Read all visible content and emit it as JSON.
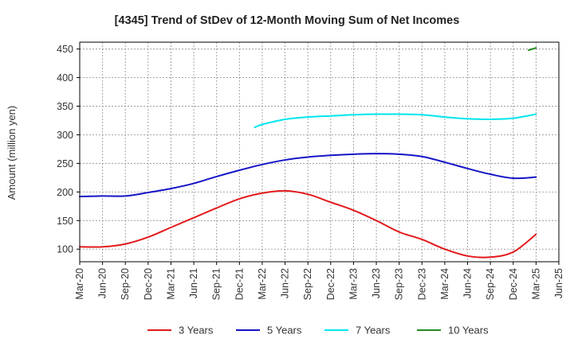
{
  "chart_data": {
    "type": "line",
    "title": "[4345]  Trend of StDev of 12-Month Moving Sum of Net Incomes",
    "ylabel": "Amount (million yen)",
    "xlabel": "",
    "ylim": [
      78,
      462
    ],
    "yticks": [
      100,
      150,
      200,
      250,
      300,
      350,
      400,
      450
    ],
    "x_tick_labels": [
      "Mar-20",
      "Jun-20",
      "Sep-20",
      "Dec-20",
      "Mar-21",
      "Jun-21",
      "Sep-21",
      "Dec-21",
      "Mar-22",
      "Jun-22",
      "Sep-22",
      "Dec-22",
      "Mar-23",
      "Jun-23",
      "Sep-23",
      "Dec-23",
      "Mar-24",
      "Jun-24",
      "Sep-24",
      "Dec-24",
      "Mar-25",
      "Jun-25"
    ],
    "grid": true,
    "legend_position": "bottom",
    "series": [
      {
        "name": "3 Years",
        "color": "#e31a1c",
        "points": [
          [
            0,
            104
          ],
          [
            1,
            104
          ],
          [
            2,
            109
          ],
          [
            3,
            121
          ],
          [
            4,
            138
          ],
          [
            5,
            155
          ],
          [
            6,
            172
          ],
          [
            7,
            188
          ],
          [
            8,
            198
          ],
          [
            9,
            202
          ],
          [
            10,
            196
          ],
          [
            11,
            182
          ],
          [
            12,
            168
          ],
          [
            13,
            150
          ],
          [
            14,
            130
          ],
          [
            15,
            117
          ],
          [
            16,
            100
          ],
          [
            17,
            88
          ],
          [
            18,
            86
          ],
          [
            19,
            95
          ],
          [
            20,
            126
          ]
        ]
      },
      {
        "name": "5 Years",
        "color": "#1414c8",
        "points": [
          [
            0,
            192
          ],
          [
            1,
            193
          ],
          [
            2,
            193
          ],
          [
            3,
            199
          ],
          [
            4,
            206
          ],
          [
            5,
            215
          ],
          [
            6,
            227
          ],
          [
            7,
            238
          ],
          [
            8,
            248
          ],
          [
            9,
            256
          ],
          [
            10,
            261
          ],
          [
            11,
            264
          ],
          [
            12,
            266
          ],
          [
            13,
            267
          ],
          [
            14,
            266
          ],
          [
            15,
            262
          ],
          [
            16,
            252
          ],
          [
            17,
            241
          ],
          [
            18,
            231
          ],
          [
            19,
            224
          ],
          [
            20,
            226
          ]
        ]
      },
      {
        "name": "7 Years",
        "color": "#00e5ee",
        "points": [
          [
            7.67,
            313
          ],
          [
            8,
            318
          ],
          [
            9,
            327
          ],
          [
            10,
            331
          ],
          [
            11,
            333
          ],
          [
            12,
            335
          ],
          [
            13,
            336
          ],
          [
            14,
            336
          ],
          [
            15,
            335
          ],
          [
            16,
            331
          ],
          [
            17,
            328
          ],
          [
            18,
            327
          ],
          [
            19,
            329
          ],
          [
            20,
            336
          ]
        ]
      },
      {
        "name": "10 Years",
        "color": "#228b22",
        "points": [
          [
            19.67,
            448
          ],
          [
            20,
            452
          ]
        ]
      }
    ]
  }
}
